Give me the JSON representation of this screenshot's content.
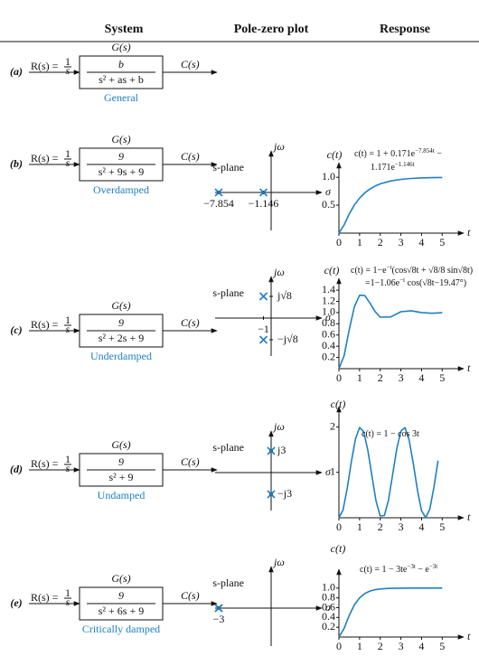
{
  "header": {
    "columns": [
      "System",
      "Pole-zero plot",
      "Response"
    ]
  },
  "rows": [
    {
      "label": "(a)",
      "input": {
        "lhs": "R(s) =",
        "num": "1",
        "den": "s"
      },
      "block_title": "G(s)",
      "tf": {
        "num": "b",
        "den": "s² + as + b"
      },
      "output": "C(s)",
      "caption": "General"
    },
    {
      "label": "(b)",
      "input": {
        "lhs": "R(s) =",
        "num": "1",
        "den": "s"
      },
      "block_title": "G(s)",
      "tf": {
        "num": "9",
        "den": "s² + 9s + 9"
      },
      "output": "C(s)",
      "caption": "Overdamped",
      "pole_zero": {
        "plane_label": "s-plane",
        "imag_axis": "jω",
        "real_axis": "σ",
        "poles": [
          {
            "re": -7.854,
            "im": 0
          },
          {
            "re": -1.146,
            "im": 0
          }
        ],
        "real_ticks": [
          {
            "value": -7.854,
            "label": "−7.854"
          },
          {
            "value": -1.146,
            "label": "−1.146"
          }
        ],
        "imag_ticks": []
      },
      "response": {
        "y_label": "c(t)",
        "equation": [
          [
            "c(t) = 1 + 0.171e",
            "−7.854t",
            " −"
          ],
          [
            "1.171e",
            "−1.146t"
          ]
        ],
        "x_label": "t",
        "x": [
          0,
          0.25,
          0.5,
          0.75,
          1,
          1.25,
          1.5,
          1.75,
          2,
          2.5,
          3,
          3.5,
          4,
          4.5,
          5
        ],
        "values": [
          0,
          0.145,
          0.343,
          0.505,
          0.628,
          0.72,
          0.79,
          0.842,
          0.882,
          0.933,
          0.962,
          0.979,
          0.988,
          0.993,
          0.996
        ],
        "xlim": [
          0,
          5.6
        ],
        "xticks": [
          0,
          1,
          2,
          3,
          4,
          5
        ],
        "ylim": [
          0,
          1.1
        ],
        "yticks": [
          0.5,
          {
            "value": 1,
            "label": "1.0"
          }
        ],
        "color": "#1f7fc4"
      }
    },
    {
      "label": "(c)",
      "input": {
        "lhs": "R(s) =",
        "num": "1",
        "den": "s"
      },
      "block_title": "G(s)",
      "tf": {
        "num": "9",
        "den": "s² + 2s + 9"
      },
      "output": "C(s)",
      "caption": "Underdamped",
      "pole_zero": {
        "plane_label": "s-plane",
        "imag_axis": "jω",
        "real_axis": "σ",
        "poles": [
          {
            "re": -1,
            "im": 2.828
          },
          {
            "re": -1,
            "im": -2.828
          }
        ],
        "real_ticks": [
          {
            "value": -1,
            "label": "−1"
          }
        ],
        "imag_ticks": [
          {
            "value": 2.828,
            "label": "j√8"
          },
          {
            "value": -2.828,
            "label": "−j√8"
          }
        ]
      },
      "response": {
        "y_label": "c(t)",
        "equation": [
          [
            "c(t) = 1−e",
            "−t",
            "(cos√8t + √8/8 sin√8t)"
          ],
          [
            "=1−1.06e",
            "−t",
            " cos(√8t−19.47°)"
          ]
        ],
        "x_label": "t",
        "x": [
          0,
          0.25,
          0.5,
          0.75,
          1,
          1.25,
          1.5,
          1.75,
          2,
          2.5,
          3,
          3.5,
          4,
          4.5,
          5
        ],
        "values": [
          0,
          0.229,
          0.694,
          1.104,
          1.31,
          1.303,
          1.17,
          1.019,
          0.918,
          0.922,
          1.015,
          1.032,
          1.001,
          0.988,
          0.998
        ],
        "xlim": [
          0,
          5.6
        ],
        "xticks": [
          0,
          1,
          2,
          3,
          4,
          5
        ],
        "ylim": [
          0,
          1.45
        ],
        "yticks": [
          0.2,
          0.4,
          0.6,
          0.8,
          {
            "value": 1,
            "label": "1.0"
          },
          1.2,
          1.4
        ],
        "color": "#1f7fc4"
      }
    },
    {
      "label": "(d)",
      "input": {
        "lhs": "R(s) =",
        "num": "1",
        "den": "s"
      },
      "block_title": "G(s)",
      "tf": {
        "num": "9",
        "den": "s² + 9"
      },
      "output": "C(s)",
      "caption": "Undamped",
      "pole_zero": {
        "plane_label": "s-plane",
        "imag_axis": "jω",
        "real_axis": "σ",
        "poles": [
          {
            "re": 0,
            "im": 3
          },
          {
            "re": 0,
            "im": -3
          }
        ],
        "real_ticks": [],
        "imag_ticks": [
          {
            "value": 3,
            "label": "j3"
          },
          {
            "value": -3,
            "label": "−j3"
          }
        ]
      },
      "response": {
        "y_label": "c(t)",
        "equation": [
          [
            "c(t) = 1 − cos 3t"
          ]
        ],
        "x_label": "t",
        "x": [
          0,
          0.2,
          0.4,
          0.6,
          0.8,
          1,
          1.2,
          1.4,
          1.6,
          1.8,
          2,
          2.2,
          2.4,
          2.6,
          2.8,
          3,
          3.2,
          3.4,
          3.6,
          3.8,
          4,
          4.2,
          4.4,
          4.6,
          4.8
        ],
        "values": [
          0,
          0.175,
          0.638,
          1.227,
          1.737,
          1.99,
          1.897,
          1.49,
          0.913,
          0.365,
          0.04,
          0.05,
          0.392,
          0.946,
          1.519,
          1.911,
          1.985,
          1.714,
          1.194,
          0.607,
          0.156,
          0.001,
          0.194,
          0.669,
          1.26
        ],
        "xlim": [
          0,
          5.6
        ],
        "xticks": [
          0,
          1,
          2,
          3,
          4,
          5
        ],
        "ylim": [
          0,
          2.25
        ],
        "yticks": [
          1,
          2
        ],
        "color": "#1f7fc4"
      }
    },
    {
      "label": "(e)",
      "input": {
        "lhs": "R(s) =",
        "num": "1",
        "den": "s"
      },
      "block_title": "G(s)",
      "tf": {
        "num": "9",
        "den": "s² + 6s + 9"
      },
      "output": "C(s)",
      "caption": "Critically damped",
      "pole_zero": {
        "plane_label": "s-plane",
        "imag_axis": "jω",
        "real_axis": "σ",
        "poles": [
          {
            "re": -3,
            "im": 0
          },
          {
            "re": -3,
            "im": 0
          }
        ],
        "real_ticks": [
          {
            "value": -3,
            "label": "−3"
          }
        ],
        "imag_ticks": []
      },
      "response": {
        "y_label": "c(t)",
        "equation": [
          [
            "c(t) = 1 − 3te",
            "−3t",
            " − e",
            "−3t"
          ]
        ],
        "x_label": "t",
        "x": [
          0,
          0.25,
          0.5,
          0.75,
          1,
          1.25,
          1.5,
          1.75,
          2,
          2.5,
          3,
          3.5,
          4,
          4.5,
          5
        ],
        "values": [
          0,
          0.173,
          0.442,
          0.657,
          0.801,
          0.888,
          0.939,
          0.967,
          0.983,
          0.995,
          0.999,
          1,
          1,
          1,
          1
        ],
        "xlim": [
          0,
          5.6
        ],
        "xticks": [
          0,
          1,
          2,
          3,
          4,
          5
        ],
        "ylim": [
          0,
          1.2
        ],
        "yticks": [
          0.2,
          0.4,
          0.6,
          0.8,
          {
            "value": 1,
            "label": "1.0"
          }
        ],
        "color": "#1f7fc4"
      }
    }
  ]
}
